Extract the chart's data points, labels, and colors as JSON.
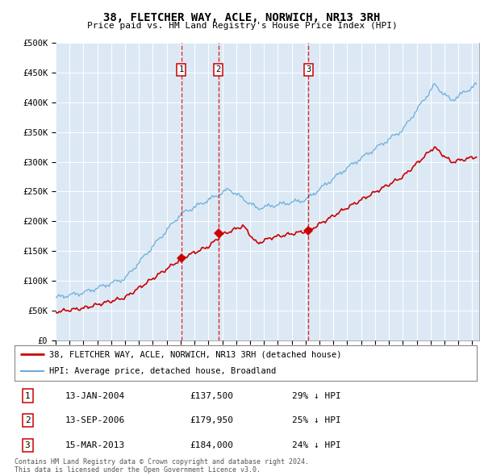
{
  "title": "38, FLETCHER WAY, ACLE, NORWICH, NR13 3RH",
  "subtitle": "Price paid vs. HM Land Registry's House Price Index (HPI)",
  "background_color": "#dce9f5",
  "plot_bg_color": "#dce9f5",
  "ylim": [
    0,
    500000
  ],
  "yticks": [
    0,
    50000,
    100000,
    150000,
    200000,
    250000,
    300000,
    350000,
    400000,
    450000,
    500000
  ],
  "transactions": [
    {
      "date_year": 2004.04,
      "price": 137500,
      "label": "1"
    },
    {
      "date_year": 2006.71,
      "price": 179950,
      "label": "2"
    },
    {
      "date_year": 2013.21,
      "price": 184000,
      "label": "3"
    }
  ],
  "transaction_details": [
    {
      "num": "1",
      "date": "13-JAN-2004",
      "price": "£137,500",
      "hpi": "29% ↓ HPI"
    },
    {
      "num": "2",
      "date": "13-SEP-2006",
      "price": "£179,950",
      "hpi": "25% ↓ HPI"
    },
    {
      "num": "3",
      "date": "15-MAR-2013",
      "price": "£184,000",
      "hpi": "24% ↓ HPI"
    }
  ],
  "legend_red_label": "38, FLETCHER WAY, ACLE, NORWICH, NR13 3RH (detached house)",
  "legend_blue_label": "HPI: Average price, detached house, Broadland",
  "red_color": "#cc0000",
  "blue_color": "#6aacdb",
  "footer": "Contains HM Land Registry data © Crown copyright and database right 2024.\nThis data is licensed under the Open Government Licence v3.0.",
  "box_color": "#cc0000"
}
